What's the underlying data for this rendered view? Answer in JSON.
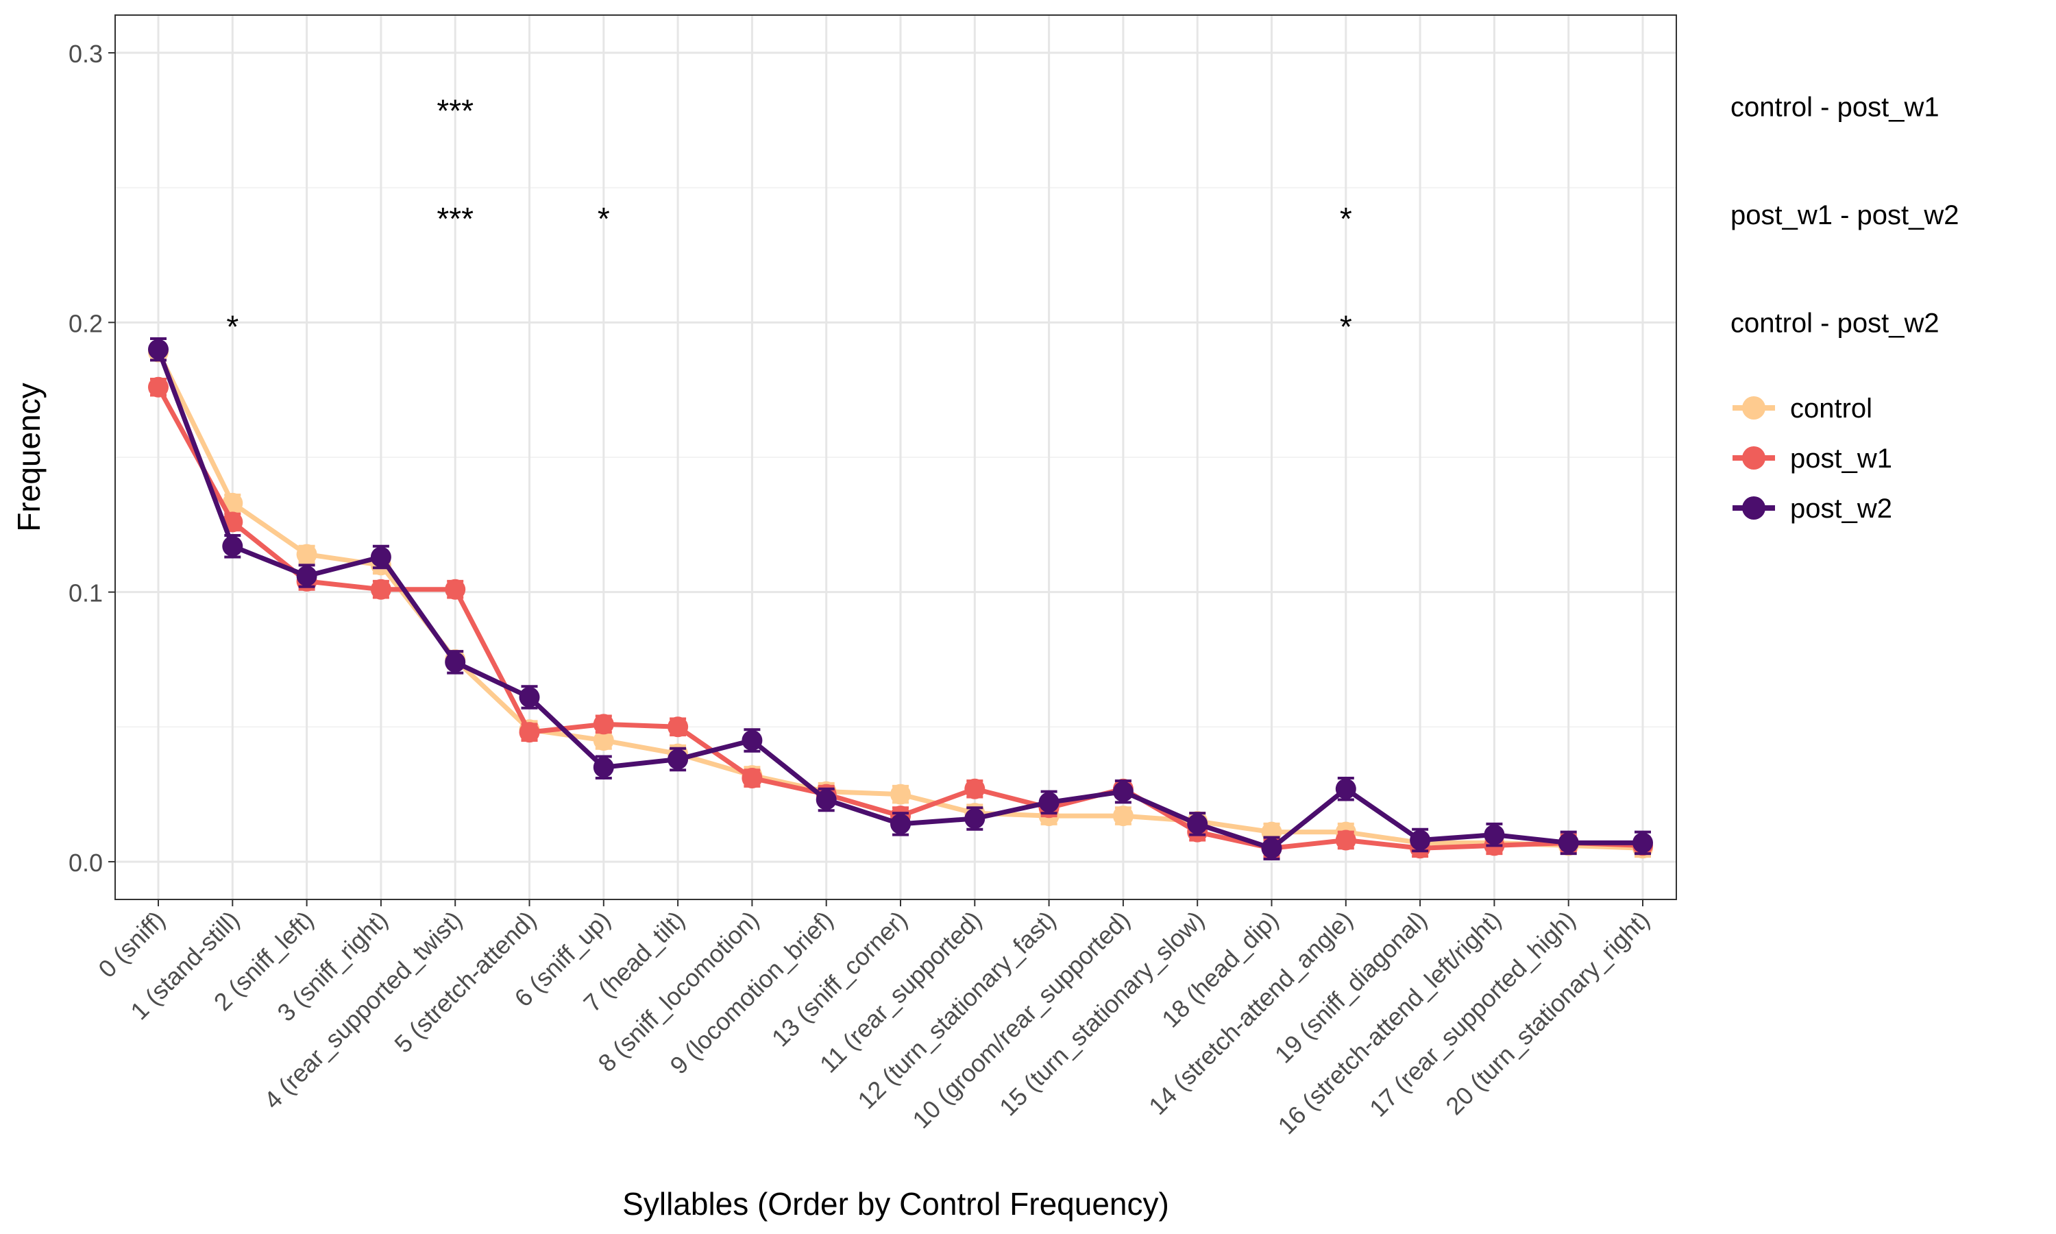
{
  "chart_data": {
    "type": "line",
    "title": "",
    "xlabel": "Syllables (Order by Control Frequency)",
    "ylabel": "Frequency",
    "ylim": [
      -0.014,
      0.314
    ],
    "yticks": [
      0.0,
      0.1,
      0.2,
      0.3
    ],
    "ytick_labels": [
      "0.0",
      "0.1",
      "0.2",
      "0.3"
    ],
    "grid": true,
    "legend_position": "right",
    "categories": [
      "0 (sniff)",
      "1 (stand-still)",
      "2 (sniff_left)",
      "3 (sniff_right)",
      "4 (rear_supported_twist)",
      "5 (stretch-attend)",
      "6 (sniff_up)",
      "7 (head_tilt)",
      "8 (sniff_locomotion)",
      "9 (locomotion_brief)",
      "13 (sniff_corner)",
      "11 (rear_supported)",
      "12 (turn_stationary_fast)",
      "10 (groom/rear_supported)",
      "15 (turn_stationary_slow)",
      "18 (head_dip)",
      "14 (stretch-attend_angle)",
      "19 (sniff_diagonal)",
      "16 (stretch-attend_left/right)",
      "17 (rear_supported_high)",
      "20 (turn_stationary_right)"
    ],
    "series": [
      {
        "name": "control",
        "color": "#FECB8F",
        "values": [
          0.189,
          0.133,
          0.114,
          0.11,
          0.075,
          0.049,
          0.045,
          0.04,
          0.032,
          0.026,
          0.025,
          0.018,
          0.017,
          0.017,
          0.015,
          0.011,
          0.011,
          0.007,
          0.007,
          0.006,
          0.005
        ],
        "errors": [
          0.003,
          0.003,
          0.003,
          0.003,
          0.003,
          0.003,
          0.003,
          0.003,
          0.003,
          0.003,
          0.003,
          0.003,
          0.003,
          0.003,
          0.003,
          0.003,
          0.003,
          0.003,
          0.003,
          0.003,
          0.003
        ]
      },
      {
        "name": "post_w1",
        "color": "#EF5E5A",
        "values": [
          0.176,
          0.126,
          0.104,
          0.101,
          0.101,
          0.048,
          0.051,
          0.05,
          0.031,
          0.025,
          0.017,
          0.027,
          0.02,
          0.027,
          0.011,
          0.005,
          0.008,
          0.005,
          0.006,
          0.007,
          0.006
        ],
        "errors": [
          0.003,
          0.003,
          0.003,
          0.003,
          0.003,
          0.003,
          0.003,
          0.003,
          0.003,
          0.003,
          0.003,
          0.003,
          0.003,
          0.003,
          0.003,
          0.003,
          0.003,
          0.003,
          0.003,
          0.003,
          0.003
        ]
      },
      {
        "name": "post_w2",
        "color": "#4B0E6D",
        "values": [
          0.19,
          0.117,
          0.106,
          0.113,
          0.074,
          0.061,
          0.035,
          0.038,
          0.045,
          0.023,
          0.014,
          0.016,
          0.022,
          0.026,
          0.014,
          0.005,
          0.027,
          0.008,
          0.01,
          0.007,
          0.007
        ],
        "errors": [
          0.004,
          0.004,
          0.004,
          0.004,
          0.004,
          0.004,
          0.004,
          0.004,
          0.004,
          0.004,
          0.004,
          0.004,
          0.004,
          0.004,
          0.004,
          0.004,
          0.004,
          0.004,
          0.004,
          0.004,
          0.004
        ]
      }
    ],
    "significance_rows": [
      {
        "label": "control - post_w1",
        "y": 0.28,
        "marks": [
          {
            "category_index": 4,
            "text": "***"
          }
        ]
      },
      {
        "label": "post_w1 - post_w2",
        "y": 0.24,
        "marks": [
          {
            "category_index": 4,
            "text": "***"
          },
          {
            "category_index": 6,
            "text": "*"
          },
          {
            "category_index": 16,
            "text": "*"
          }
        ]
      },
      {
        "label": "control - post_w2",
        "y": 0.2,
        "marks": [
          {
            "category_index": 1,
            "text": "*"
          },
          {
            "category_index": 16,
            "text": "*"
          }
        ]
      }
    ],
    "legend_entries": [
      "control",
      "post_w1",
      "post_w2"
    ]
  }
}
